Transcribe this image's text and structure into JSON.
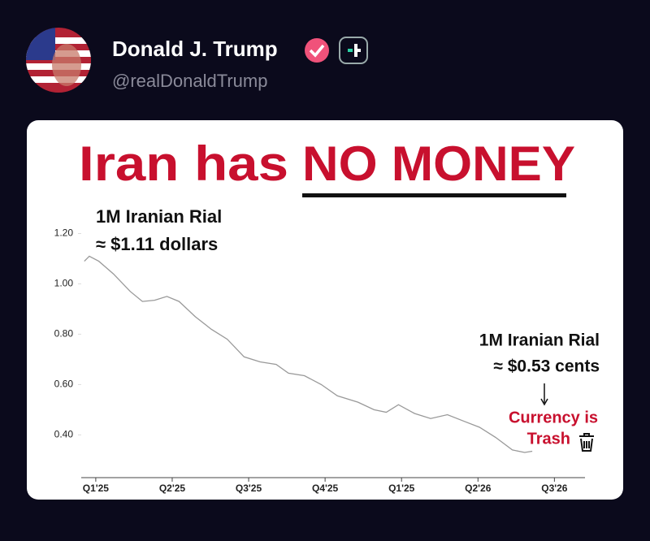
{
  "post": {
    "author": "Donald J. Trump",
    "handle": "@realDonaldTrump"
  },
  "chart_data": {
    "type": "line",
    "title_lead": "Iran has",
    "title_emphasis": "NO MONEY",
    "annotations": [
      "1M Iranian Rial",
      "≈ $1.11 dollars",
      "1M Iranian Rial",
      "≈ $0.53 cents",
      "Currency is",
      "Trash"
    ],
    "x": [
      -0.15,
      -0.085,
      0.04,
      0.23,
      0.45,
      0.61,
      0.77,
      0.93,
      1.09,
      1.3,
      1.51,
      1.72,
      1.94,
      2.15,
      2.36,
      2.52,
      2.73,
      2.95,
      3.16,
      3.43,
      3.64,
      3.8,
      3.96,
      4.17,
      4.38,
      4.6,
      4.81,
      5.02,
      5.23,
      5.45,
      5.61,
      5.71
    ],
    "values": [
      1.09,
      1.11,
      1.09,
      1.04,
      0.97,
      0.93,
      0.935,
      0.95,
      0.93,
      0.87,
      0.82,
      0.78,
      0.71,
      0.69,
      0.68,
      0.645,
      0.635,
      0.6,
      0.555,
      0.53,
      0.5,
      0.49,
      0.52,
      0.485,
      0.465,
      0.48,
      0.455,
      0.43,
      0.39,
      0.34,
      0.33,
      0.335
    ],
    "color": "#999999",
    "xlim": [
      -0.19,
      6.4
    ],
    "xticks": [
      {
        "value": 0,
        "label": "Q1'25"
      },
      {
        "value": 1,
        "label": "Q2'25"
      },
      {
        "value": 2,
        "label": "Q3'25"
      },
      {
        "value": 3,
        "label": "Q4'25"
      },
      {
        "value": 4,
        "label": "Q1'25"
      },
      {
        "value": 5,
        "label": "Q2'26"
      },
      {
        "value": 6,
        "label": "Q3'26"
      }
    ],
    "ylim": [
      0.23,
      1.25
    ],
    "yticks": [
      {
        "value": 1.2,
        "label": "1.20"
      },
      {
        "value": 1.0,
        "label": "1.00"
      },
      {
        "value": 0.8,
        "label": "0.80"
      },
      {
        "value": 0.6,
        "label": "0.60"
      },
      {
        "value": 0.4,
        "label": "0.40"
      }
    ]
  }
}
